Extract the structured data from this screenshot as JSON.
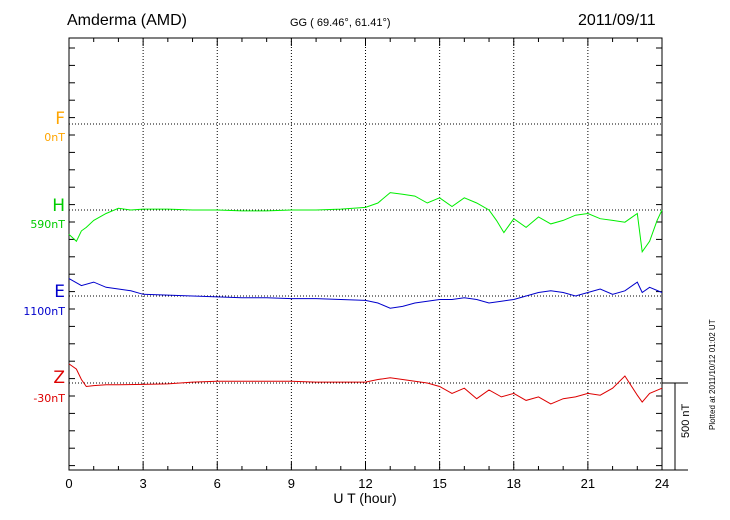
{
  "header": {
    "station": "Amderma (AMD)",
    "coords": "GG ( 69.46°,  61.41°)",
    "date": "2011/09/11"
  },
  "side_note": "Plotted at 2011/10/12 01:02 UT",
  "colors": {
    "F": "#ffa500",
    "H": "#00ee00",
    "E": "#0000cc",
    "Z": "#dd0000",
    "grid": "#000000"
  },
  "chart_data": {
    "type": "line",
    "xlabel": "U T (hour)",
    "xlim": [
      0,
      24
    ],
    "xticks": [
      "0",
      "3",
      "6",
      "9",
      "12",
      "15",
      "18",
      "21",
      "24"
    ],
    "scale_bar_label": "500 nT",
    "series": [
      {
        "name": "F",
        "baseline_label": "0nT",
        "x": [],
        "y": []
      },
      {
        "name": "H",
        "baseline_label": "590nT",
        "x": [
          0,
          0.3,
          0.5,
          0.7,
          1.0,
          1.5,
          2.0,
          2.5,
          3,
          4,
          5,
          6,
          7,
          8,
          9,
          10,
          11,
          12,
          12.5,
          13,
          13.5,
          14,
          14.5,
          15,
          15.5,
          16,
          16.5,
          17,
          17.3,
          17.6,
          17.8,
          18,
          18.5,
          19,
          19.5,
          20,
          20.5,
          21,
          21.5,
          22,
          22.5,
          23,
          23.2,
          23.5,
          23.8,
          24
        ],
        "y": [
          -140,
          -180,
          -120,
          -100,
          -60,
          -20,
          10,
          0,
          5,
          5,
          0,
          0,
          -5,
          -5,
          0,
          0,
          5,
          15,
          40,
          100,
          90,
          80,
          40,
          70,
          20,
          70,
          40,
          0,
          -60,
          -130,
          -90,
          -50,
          -100,
          -40,
          -80,
          -60,
          -30,
          -20,
          -50,
          -60,
          -70,
          -20,
          -240,
          -180,
          -60,
          0
        ]
      },
      {
        "name": "E",
        "baseline_label": "1100nT",
        "x": [
          0,
          0.5,
          1,
          1.5,
          2,
          2.5,
          3,
          4,
          5,
          6,
          7,
          8,
          9,
          10,
          11,
          12,
          12.5,
          13,
          13.5,
          14,
          14.5,
          15,
          15.5,
          16,
          16.5,
          17,
          17.5,
          18,
          18.5,
          19,
          19.5,
          20,
          20.5,
          21,
          21.5,
          22,
          22.5,
          23,
          23.2,
          23.5,
          24
        ],
        "y": [
          100,
          60,
          80,
          50,
          40,
          30,
          10,
          5,
          0,
          -5,
          -10,
          -10,
          -15,
          -15,
          -20,
          -25,
          -40,
          -70,
          -60,
          -40,
          -30,
          -20,
          -20,
          -10,
          -20,
          -40,
          -30,
          -20,
          0,
          20,
          30,
          20,
          0,
          20,
          40,
          10,
          30,
          80,
          20,
          50,
          20
        ]
      },
      {
        "name": "Z",
        "baseline_label": "-30nT",
        "x": [
          0,
          0.3,
          0.5,
          0.7,
          1.0,
          1.5,
          2,
          3,
          4,
          5,
          6,
          7,
          8,
          9,
          10,
          11,
          12,
          12.5,
          13,
          13.5,
          14,
          14.5,
          15,
          15.5,
          16,
          16.5,
          17,
          17.5,
          18,
          18.5,
          19,
          19.5,
          20,
          20.5,
          21,
          21.5,
          22,
          22.5,
          23,
          23.2,
          23.5,
          24
        ],
        "y": [
          110,
          80,
          20,
          -20,
          -15,
          -10,
          -10,
          -8,
          -5,
          5,
          10,
          10,
          10,
          10,
          5,
          5,
          5,
          20,
          30,
          20,
          10,
          0,
          -20,
          -60,
          -30,
          -90,
          -40,
          -80,
          -60,
          -100,
          -80,
          -120,
          -90,
          -80,
          -60,
          -70,
          -30,
          40,
          -70,
          -110,
          -60,
          -30
        ]
      }
    ]
  }
}
